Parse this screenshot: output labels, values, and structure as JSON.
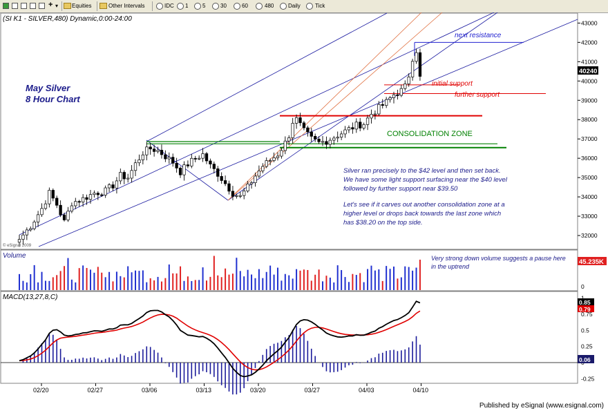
{
  "toolbar": {
    "items": [
      "Equities",
      "Other Intervals",
      "IDC",
      "1",
      "5",
      "30",
      "60",
      "480",
      "Daily",
      "Tick"
    ]
  },
  "chart_header": "(SI K1 - SILVER,480) Dynamic,0:00-24:00",
  "footer": "Published by eSignal (www.esignal.com)",
  "watermark": "© eSignal 2009",
  "colors": {
    "up": "#000000",
    "down": "#000000",
    "channel": "#1a1aa0",
    "fib": "#e07040",
    "support": "#e00000",
    "consolidation": "#008000",
    "resistance": "#2020d0",
    "vol_up": "#2030d0",
    "vol_down": "#e02020",
    "macd": "#000000",
    "signal": "#e00000",
    "hist": "#1a1a9a",
    "text_blue": "#1a1a8a",
    "price_flag": "#000000",
    "vol_flag": "#e02020",
    "macd_flag": "#000000",
    "signal_flag": "#e00000",
    "hist_flag": "#1a1a6a"
  },
  "annotations": {
    "title_line1": "May Silver",
    "title_line2": "8 Hour Chart",
    "next_resistance": "next resistance",
    "initial_support": "initial support",
    "further_support": "further support",
    "consolidation_zone": "CONSOLIDATION ZONE",
    "comment_p1_l1": "Silver ran precisely to the $42 level and then set back.",
    "comment_p1_l2": "We have some light support surfacing near the $40 level",
    "comment_p1_l3": "followed by further support near $39.50",
    "comment_p2_l1": "Let's see if it carves out another consolidation zone at a",
    "comment_p2_l2": "higher level or drops back towards the last zone which",
    "comment_p2_l3": "has $38.20 on the top side.",
    "volume_note_l1": "Very strong down volume suggests a pause here",
    "volume_note_l2": "in the uptrend"
  },
  "panels": {
    "price_label": "",
    "volume_label": "Volume",
    "macd_label": "MACD(13,27,8,C)"
  },
  "flags": {
    "price": "40240",
    "volume": "45.235K",
    "macd": "0.85",
    "signal": "0.79",
    "hist": "0.06"
  },
  "chart_data": [
    {
      "type": "candlestick",
      "title": "May Silver 8 Hour Chart",
      "x_ticks": [
        "02/20",
        "02/27",
        "03/06",
        "03/13",
        "03/20",
        "03/27",
        "04/03",
        "04/10"
      ],
      "y_ticks": [
        32000,
        33000,
        34000,
        35000,
        36000,
        37000,
        38000,
        39000,
        40000,
        41000,
        42000,
        43000
      ],
      "ylim": [
        31500,
        43300
      ],
      "bar_count": 108,
      "close_path": [
        [
          0,
          31800
        ],
        [
          3,
          32500
        ],
        [
          6,
          33400
        ],
        [
          8,
          34200
        ],
        [
          10,
          33600
        ],
        [
          12,
          32700
        ],
        [
          14,
          33700
        ],
        [
          17,
          33900
        ],
        [
          20,
          34200
        ],
        [
          23,
          34300
        ],
        [
          25,
          34600
        ],
        [
          27,
          35100
        ],
        [
          29,
          35000
        ],
        [
          31,
          35700
        ],
        [
          33,
          36300
        ],
        [
          35,
          36500
        ],
        [
          37,
          36400
        ],
        [
          39,
          36100
        ],
        [
          41,
          35800
        ],
        [
          43,
          35300
        ],
        [
          45,
          35700
        ],
        [
          47,
          36000
        ],
        [
          49,
          36200
        ],
        [
          51,
          35600
        ],
        [
          53,
          35200
        ],
        [
          55,
          34700
        ],
        [
          57,
          34200
        ],
        [
          59,
          34000
        ],
        [
          61,
          34500
        ],
        [
          63,
          35100
        ],
        [
          65,
          35600
        ],
        [
          67,
          35900
        ],
        [
          69,
          36200
        ],
        [
          71,
          36800
        ],
        [
          72,
          37200
        ],
        [
          73,
          37900
        ],
        [
          74,
          38000
        ],
        [
          76,
          37400
        ],
        [
          78,
          37000
        ],
        [
          80,
          36800
        ],
        [
          82,
          36900
        ],
        [
          84,
          37100
        ],
        [
          86,
          37300
        ],
        [
          88,
          37500
        ],
        [
          90,
          37700
        ],
        [
          92,
          37800
        ],
        [
          94,
          38300
        ],
        [
          96,
          38600
        ],
        [
          98,
          38900
        ],
        [
          100,
          39300
        ],
        [
          102,
          39500
        ],
        [
          103,
          39700
        ],
        [
          104,
          40300
        ],
        [
          105,
          41200
        ],
        [
          106,
          41600
        ],
        [
          107,
          40240
        ]
      ],
      "levels": {
        "next_resistance": 42000,
        "initial_support": 39800,
        "further_support": 39350,
        "support_line": 38200,
        "consolidation_upper": 36750,
        "consolidation_lower": 36550
      }
    },
    {
      "type": "bar",
      "title": "Volume",
      "last_value": "45.235K",
      "y_ticks": [
        0
      ]
    },
    {
      "type": "line",
      "title": "MACD(13,27,8,C)",
      "y_ticks": [
        -0.25,
        0,
        0.25,
        0.5,
        0.75,
        1
      ],
      "ylim": [
        -0.3,
        1.05
      ],
      "series": [
        {
          "name": "MACD",
          "last": 0.85
        },
        {
          "name": "Signal",
          "last": 0.79
        },
        {
          "name": "Histogram",
          "last": 0.06
        }
      ]
    }
  ]
}
